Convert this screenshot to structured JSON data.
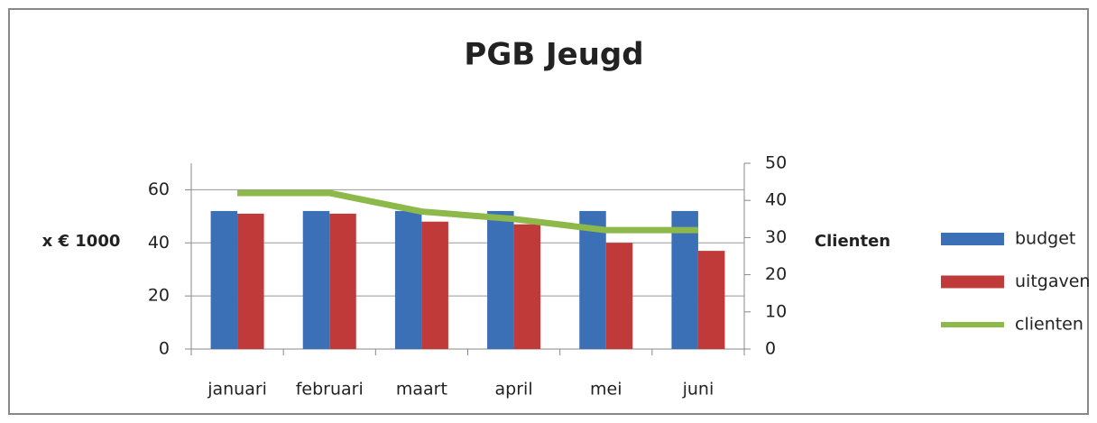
{
  "chart_data": {
    "type": "bar",
    "title": "PGB Jeugd",
    "y_label": "x € 1000",
    "y2_label": "Clienten",
    "categories": [
      "januari",
      "februari",
      "maart",
      "april",
      "mei",
      "juni"
    ],
    "series": [
      {
        "name": "budget",
        "color": "#3b6fb6",
        "values": [
          52,
          52,
          52,
          52,
          52,
          52
        ]
      },
      {
        "name": "uitgaven",
        "color": "#c13a3a",
        "values": [
          51,
          51,
          48,
          47,
          40,
          37
        ]
      },
      {
        "name": "clienten",
        "color": "#8db84a",
        "type": "line",
        "axis": "y2",
        "values": [
          42,
          42,
          37,
          35,
          32,
          32
        ]
      }
    ],
    "ylim": [
      0,
      70
    ],
    "yticks": [
      0,
      20,
      40,
      60
    ],
    "y2lim": [
      0,
      50
    ],
    "y2ticks": [
      0,
      10,
      20,
      30,
      40,
      50
    ],
    "grid": true,
    "legend": "right"
  }
}
